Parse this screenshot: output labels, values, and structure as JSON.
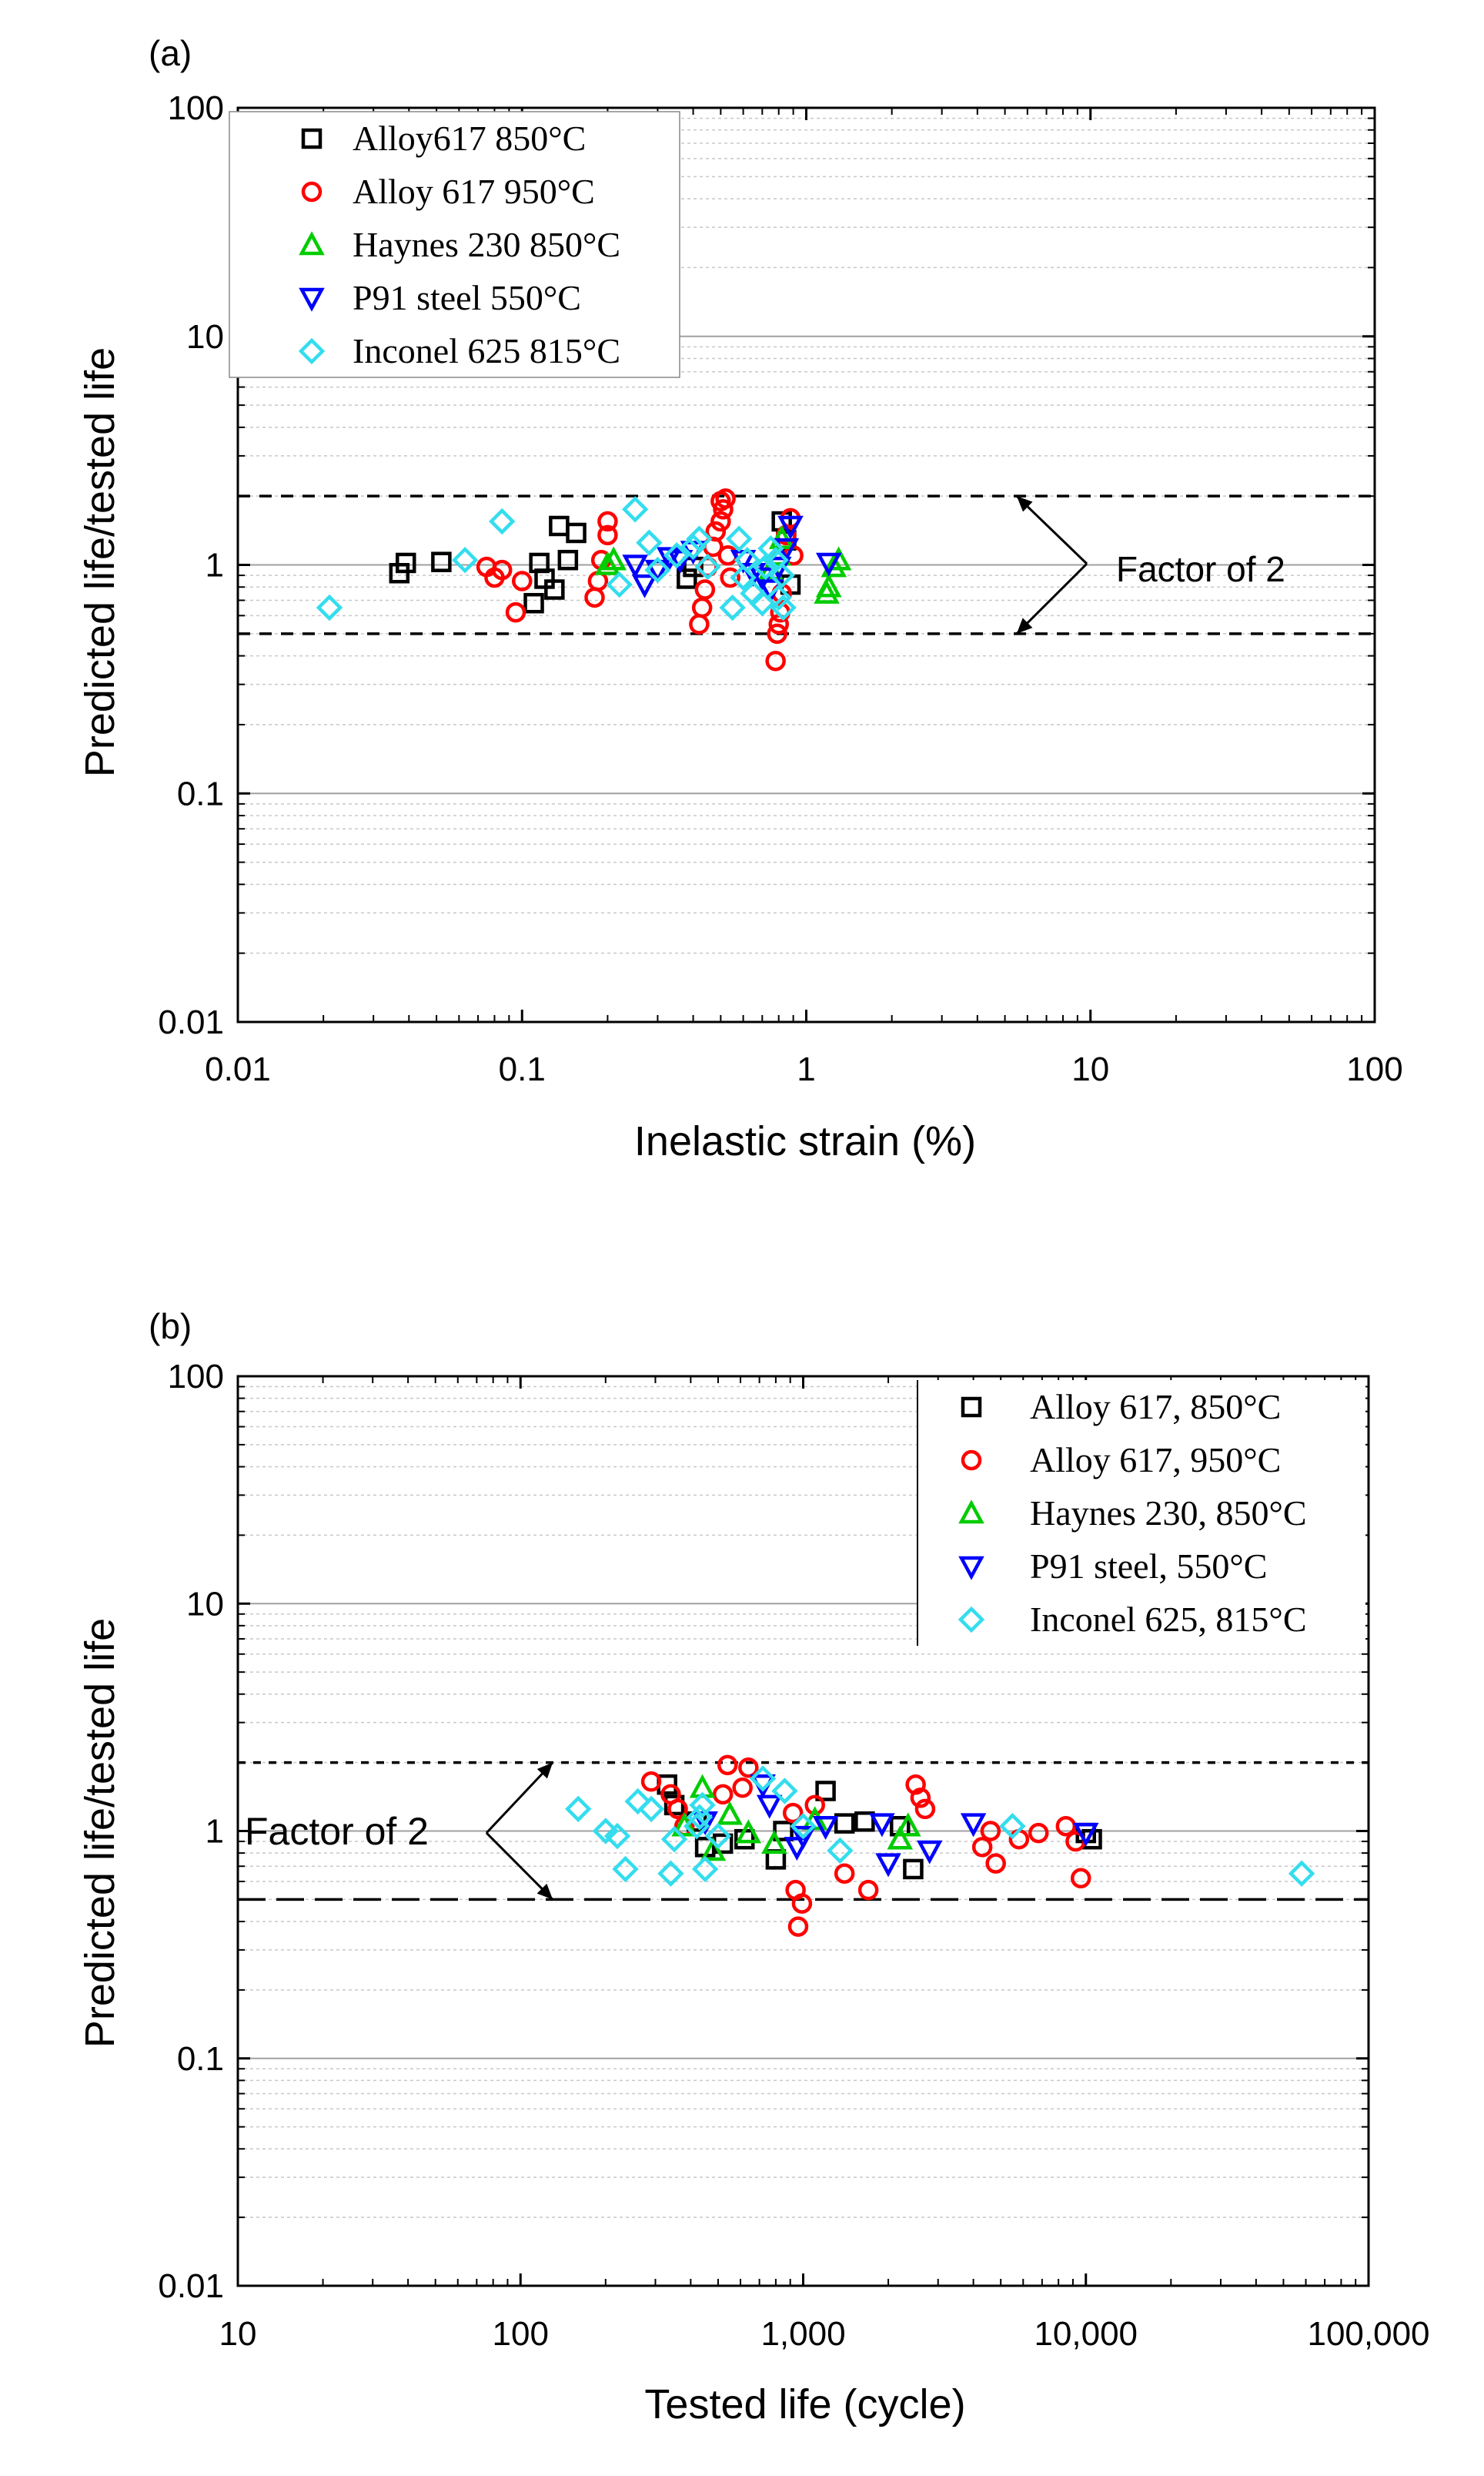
{
  "figure": {
    "panel_a_label": "(a)",
    "panel_b_label": "(b)",
    "colors": {
      "black": "#000000",
      "red": "#ff0000",
      "green": "#00cc00",
      "blue": "#0000ff",
      "cyan": "#33ddee"
    }
  },
  "chart_data": [
    {
      "id": "a",
      "type": "scatter",
      "xscale": "log",
      "yscale": "log",
      "xlabel": "Inelastic strain (%)",
      "ylabel": "Predicted life/tested life",
      "xlim": [
        0.01,
        100
      ],
      "ylim": [
        0.01,
        100
      ],
      "xticks": [
        0.01,
        0.1,
        1,
        10,
        100
      ],
      "xtick_labels": [
        "0.01",
        "0.1",
        "1",
        "10",
        "100"
      ],
      "yticks": [
        0.01,
        0.1,
        1,
        10,
        100
      ],
      "ytick_labels": [
        "0.01",
        "0.1",
        "1",
        "10",
        "100"
      ],
      "factor_lines": [
        2,
        0.5
      ],
      "annotation": {
        "text": "Factor of 2",
        "arrow_x": 5.5,
        "text_x": 9,
        "text_y": 1
      },
      "legend_location": "top-left",
      "series": [
        {
          "name": "Alloy617 850°C",
          "marker": "square",
          "color": "#000000",
          "x": [
            0.037,
            0.039,
            0.052,
            0.11,
            0.115,
            0.12,
            0.13,
            0.135,
            0.145,
            0.155,
            0.38,
            0.4,
            0.82,
            0.85,
            0.88
          ],
          "y": [
            0.92,
            1.02,
            1.03,
            0.68,
            1.02,
            0.87,
            0.78,
            1.48,
            1.05,
            1.38,
            0.87,
            0.98,
            1.55,
            1.28,
            0.82
          ]
        },
        {
          "name": "Alloy 617 950°C",
          "marker": "circle",
          "color": "#ff0000",
          "x": [
            0.075,
            0.08,
            0.085,
            0.095,
            0.1,
            0.18,
            0.185,
            0.19,
            0.2,
            0.2,
            0.42,
            0.43,
            0.44,
            0.45,
            0.47,
            0.48,
            0.5,
            0.5,
            0.51,
            0.52,
            0.53,
            0.54,
            0.78,
            0.79,
            0.8,
            0.81,
            0.82,
            0.85,
            0.88,
            0.9
          ],
          "y": [
            0.98,
            0.88,
            0.95,
            0.62,
            0.85,
            0.72,
            0.85,
            1.05,
            1.35,
            1.55,
            0.55,
            0.65,
            0.78,
            0.98,
            1.2,
            1.4,
            1.55,
            1.9,
            1.75,
            1.95,
            1.1,
            0.88,
            0.38,
            0.5,
            0.55,
            0.62,
            0.75,
            1.35,
            1.6,
            1.1
          ]
        },
        {
          "name": "Haynes 230 850°C",
          "marker": "triangle-up",
          "color": "#00cc00",
          "x": [
            0.2,
            0.21,
            0.75,
            0.8,
            0.82,
            1.18,
            1.2,
            1.25,
            1.3
          ],
          "y": [
            1.0,
            1.05,
            0.95,
            1.1,
            1.3,
            0.75,
            0.8,
            0.98,
            1.05
          ]
        },
        {
          "name": "P91 steel 550°C",
          "marker": "triangle-down",
          "color": "#0000ff",
          "x": [
            0.25,
            0.27,
            0.3,
            0.33,
            0.36,
            0.4,
            0.6,
            0.65,
            0.7,
            0.75,
            0.8,
            0.85,
            0.88,
            1.2
          ],
          "y": [
            1.0,
            0.82,
            0.95,
            1.08,
            1.05,
            1.15,
            1.05,
            0.92,
            0.88,
            0.78,
            0.98,
            1.18,
            1.48,
            1.02
          ]
        },
        {
          "name": "Inconel 625 815°C",
          "marker": "diamond",
          "color": "#33ddee",
          "x": [
            0.021,
            0.063,
            0.085,
            0.22,
            0.25,
            0.28,
            0.3,
            0.35,
            0.4,
            0.42,
            0.45,
            0.55,
            0.58,
            0.6,
            0.62,
            0.65,
            0.7,
            0.72,
            0.75,
            0.78,
            0.8,
            0.82,
            0.83
          ],
          "y": [
            0.65,
            1.05,
            1.55,
            0.82,
            1.75,
            1.25,
            0.95,
            1.1,
            1.2,
            1.3,
            0.98,
            0.65,
            1.3,
            0.88,
            1.05,
            0.75,
            0.68,
            0.98,
            1.18,
            1.05,
            0.72,
            0.9,
            0.65
          ]
        }
      ]
    },
    {
      "id": "b",
      "type": "scatter",
      "xscale": "log",
      "yscale": "log",
      "xlabel": "Tested life (cycle)",
      "ylabel": "Predicted life/tested life",
      "xlim": [
        10,
        100000
      ],
      "ylim": [
        0.01,
        100
      ],
      "xticks": [
        10,
        100,
        1000,
        10000,
        100000
      ],
      "xtick_labels": [
        "10",
        "100",
        "1,000",
        "10,000",
        "100,000"
      ],
      "yticks": [
        0.01,
        0.1,
        1,
        10,
        100
      ],
      "ytick_labels": [
        "0.01",
        "0.1",
        "1",
        "10",
        "100"
      ],
      "factor_lines": [
        2,
        0.5
      ],
      "annotation": {
        "text": "Factor of 2",
        "arrow_x": 130,
        "text_x": 11,
        "text_y": 1
      },
      "legend_location": "top-right",
      "series": [
        {
          "name": "Alloy 617, 850°C",
          "marker": "square",
          "color": "#000000",
          "x": [
            330,
            350,
            420,
            450,
            520,
            620,
            800,
            850,
            1200,
            1400,
            1650,
            2200,
            2450,
            10000,
            10500
          ],
          "y": [
            1.6,
            1.3,
            1.1,
            0.85,
            0.88,
            0.92,
            0.75,
            1.0,
            1.5,
            1.08,
            1.1,
            1.05,
            0.68,
            0.98,
            0.92
          ]
        },
        {
          "name": "Alloy 617, 950°C",
          "marker": "circle",
          "color": "#ff0000",
          "x": [
            290,
            340,
            360,
            380,
            520,
            540,
            610,
            640,
            920,
            940,
            960,
            990,
            1100,
            1400,
            1700,
            2500,
            2600,
            2700,
            4300,
            4600,
            4800,
            5800,
            6800,
            8500,
            9200,
            9600
          ],
          "y": [
            1.65,
            1.45,
            1.25,
            1.05,
            1.45,
            1.95,
            1.55,
            1.9,
            1.2,
            0.55,
            0.38,
            0.48,
            1.3,
            0.65,
            0.55,
            1.6,
            1.4,
            1.25,
            0.85,
            1.0,
            0.72,
            0.92,
            0.98,
            1.05,
            0.9,
            0.62
          ]
        },
        {
          "name": "Haynes 230, 850°C",
          "marker": "triangle-up",
          "color": "#00cc00",
          "x": [
            380,
            440,
            480,
            550,
            640,
            790,
            1100,
            2200,
            2350
          ],
          "y": [
            1.05,
            1.55,
            0.82,
            1.18,
            0.98,
            0.88,
            1.12,
            0.92,
            1.05
          ]
        },
        {
          "name": "P91 steel, 550°C",
          "marker": "triangle-down",
          "color": "#0000ff",
          "x": [
            450,
            720,
            760,
            950,
            1000,
            1200,
            1900,
            2000,
            2800,
            4000,
            10000
          ],
          "y": [
            1.1,
            1.6,
            1.3,
            0.85,
            0.95,
            1.05,
            1.08,
            0.72,
            0.82,
            1.08,
            0.98
          ]
        },
        {
          "name": "Inconel 625, 815°C",
          "marker": "diamond",
          "color": "#33ddee",
          "x": [
            160,
            200,
            220,
            235,
            260,
            290,
            340,
            350,
            420,
            430,
            440,
            450,
            500,
            720,
            860,
            1000,
            1350,
            5500,
            58000
          ],
          "y": [
            1.25,
            1.0,
            0.95,
            0.68,
            1.35,
            1.25,
            0.65,
            0.92,
            1.05,
            1.15,
            1.3,
            0.68,
            0.95,
            1.7,
            1.5,
            1.05,
            0.82,
            1.05,
            0.65
          ]
        }
      ]
    }
  ]
}
